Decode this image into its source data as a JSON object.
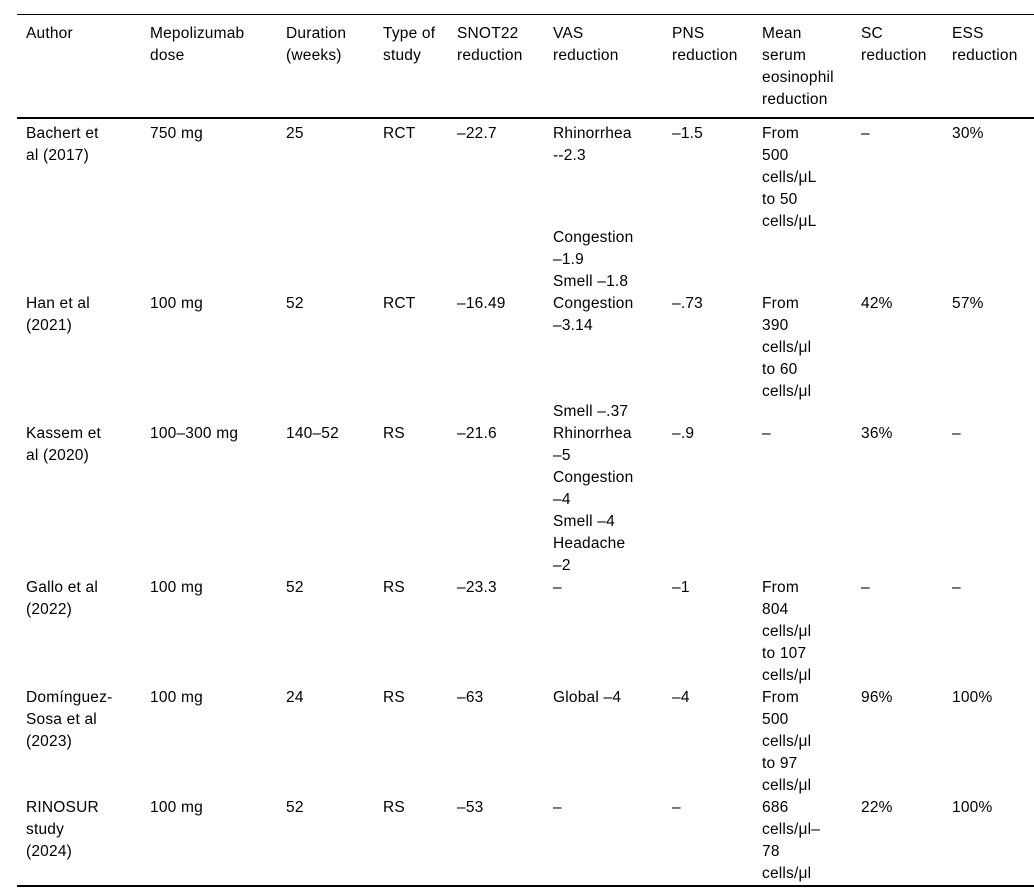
{
  "table": {
    "title": "Mepolizumab studies outcomes table",
    "columns": [
      {
        "id": "author",
        "label_lines": [
          "Author"
        ]
      },
      {
        "id": "dose",
        "label_lines": [
          "Mepolizumab",
          "dose"
        ]
      },
      {
        "id": "duration",
        "label_lines": [
          "Duration",
          "(weeks)"
        ]
      },
      {
        "id": "type",
        "label_lines": [
          "Type of",
          "study"
        ]
      },
      {
        "id": "snot22",
        "label_lines": [
          "SNOT22",
          "reduction"
        ]
      },
      {
        "id": "vas",
        "label_lines": [
          "VAS",
          "reduction"
        ]
      },
      {
        "id": "pns",
        "label_lines": [
          "PNS",
          "reduction"
        ]
      },
      {
        "id": "eos",
        "label_lines": [
          "Mean",
          "serum",
          "eosinophil",
          "reduction"
        ]
      },
      {
        "id": "sc",
        "label_lines": [
          "SC",
          "reduction"
        ]
      },
      {
        "id": "ess",
        "label_lines": [
          "ESS",
          "reduction"
        ]
      }
    ],
    "rows": [
      {
        "author": [
          "Bachert et",
          "al (2017)"
        ],
        "dose": [
          "750 mg"
        ],
        "duration": [
          "25"
        ],
        "type": [
          "RCT"
        ],
        "snot22": [
          "–22.7"
        ],
        "vas": [
          "Rhinorrhea",
          "--2.3",
          {
            "gap": 60
          },
          "Congestion",
          "–1.9",
          "Smell –1.8"
        ],
        "pns": [
          "–1.5"
        ],
        "eos": [
          "From",
          "500",
          "cells/μL",
          "to 50",
          "cells/μL"
        ],
        "sc": [
          "–"
        ],
        "ess": [
          "30%"
        ]
      },
      {
        "author": [
          "Han et al",
          "(2021)"
        ],
        "dose": [
          "100 mg"
        ],
        "duration": [
          "52"
        ],
        "type": [
          "RCT"
        ],
        "snot22": [
          "–16.49"
        ],
        "vas": [
          "Congestion",
          "–3.14",
          {
            "gap": 64
          },
          "Smell –.37"
        ],
        "pns": [
          "–.73"
        ],
        "eos": [
          "From",
          "390",
          "cells/μl",
          "to 60",
          "cells/μl"
        ],
        "sc": [
          "42%"
        ],
        "ess": [
          "57%"
        ]
      },
      {
        "author": [
          "Kassem et",
          "al (2020)"
        ],
        "dose": [
          "100–300 mg"
        ],
        "duration": [
          "140–52"
        ],
        "type": [
          "RS"
        ],
        "snot22": [
          "–21.6"
        ],
        "vas": [
          "Rhinorrhea",
          "–5",
          "Congestion",
          "–4",
          "Smell –4",
          "Headache",
          "–2"
        ],
        "pns": [
          "–.9"
        ],
        "eos": [
          "–"
        ],
        "sc": [
          "36%"
        ],
        "ess": [
          "–"
        ]
      },
      {
        "author": [
          "Gallo et al",
          "(2022)"
        ],
        "dose": [
          "100 mg"
        ],
        "duration": [
          "52"
        ],
        "type": [
          "RS"
        ],
        "snot22": [
          "–23.3"
        ],
        "vas": [
          "–"
        ],
        "pns": [
          "–1"
        ],
        "eos": [
          "From",
          "804",
          "cells/μl",
          "to 107",
          "cells/μl"
        ],
        "sc": [
          "–"
        ],
        "ess": [
          "–"
        ]
      },
      {
        "author": [
          "Domínguez-",
          "Sosa et al",
          "(2023)"
        ],
        "dose": [
          "100 mg"
        ],
        "duration": [
          "24"
        ],
        "type": [
          "RS"
        ],
        "snot22": [
          "–63"
        ],
        "vas": [
          "Global –4"
        ],
        "pns": [
          "–4"
        ],
        "eos": [
          "From",
          "500",
          "cells/μl",
          "to 97",
          "cells/μl"
        ],
        "sc": [
          "96%"
        ],
        "ess": [
          "100%"
        ]
      },
      {
        "author": [
          "RINOSUR",
          "study",
          "(2024)"
        ],
        "dose": [
          "100 mg"
        ],
        "duration": [
          "52"
        ],
        "type": [
          "RS"
        ],
        "snot22": [
          "–53"
        ],
        "vas": [
          "–"
        ],
        "pns": [
          "–"
        ],
        "eos": [
          "686",
          "cells/μl–",
          "78",
          "cells/μl"
        ],
        "sc": [
          "22%"
        ],
        "ess": [
          "100%"
        ]
      }
    ],
    "colors": {
      "text": "#000000",
      "background": "#ffffff",
      "rule": "#000000"
    }
  }
}
